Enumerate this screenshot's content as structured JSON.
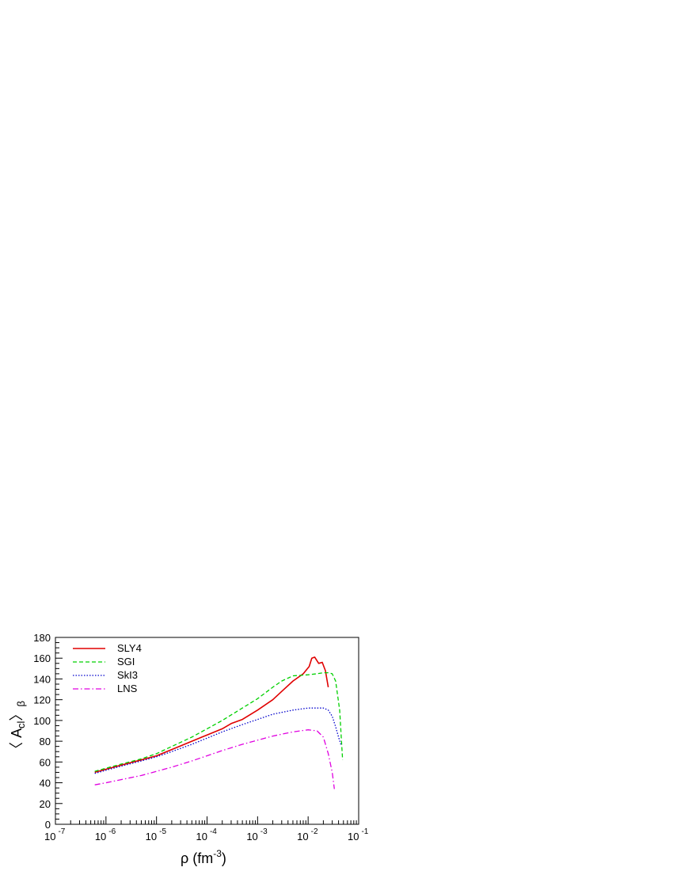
{
  "chart_data": {
    "type": "line",
    "title": "",
    "xlabel": {
      "base": "ρ (fm",
      "sup": "-3",
      "tail": ")"
    },
    "ylabel": {
      "open": "〈 A",
      "sub1": "cl",
      "close": "〉",
      "sub2": "β"
    },
    "x_scale": "log",
    "xlim": [
      1e-07,
      0.1
    ],
    "ylim": [
      0,
      180
    ],
    "y_ticks": [
      0,
      20,
      40,
      60,
      80,
      100,
      120,
      140,
      160,
      180
    ],
    "x_tick_labels": [
      {
        "exp": -7,
        "base": "10",
        "sup": "-7"
      },
      {
        "exp": -6,
        "base": "10",
        "sup": "-6"
      },
      {
        "exp": -5,
        "base": "10",
        "sup": "-5"
      },
      {
        "exp": -4,
        "base": "10",
        "sup": "-4"
      },
      {
        "exp": -3,
        "base": "10",
        "sup": "-3"
      },
      {
        "exp": -2,
        "base": "10",
        "sup": "-2"
      },
      {
        "exp": -1,
        "base": "10",
        "sup": "-1"
      }
    ],
    "grid": false,
    "legend_position": "top-left",
    "series": [
      {
        "name": "SLY4",
        "color": "#e00000",
        "dash": "solid",
        "x": [
          6e-07,
          1e-06,
          2e-06,
          5e-06,
          1e-05,
          2e-05,
          5e-05,
          0.0001,
          0.0002,
          0.0003,
          0.0005,
          0.001,
          0.002,
          0.003,
          0.005,
          0.008,
          0.0105,
          0.0118,
          0.0135,
          0.0162,
          0.019,
          0.022,
          0.025
        ],
        "y": [
          50,
          53,
          57,
          62,
          66,
          72,
          80,
          86,
          92,
          97,
          101,
          110,
          120,
          128,
          138,
          145,
          152,
          160,
          161,
          155,
          156,
          148,
          132
        ]
      },
      {
        "name": "SGI",
        "color": "#00d000",
        "dash": "dashed",
        "x": [
          6e-07,
          1e-06,
          2e-06,
          5e-06,
          1e-05,
          2e-05,
          5e-05,
          0.0001,
          0.0002,
          0.0005,
          0.001,
          0.002,
          0.003,
          0.005,
          0.01,
          0.015,
          0.02,
          0.025,
          0.03,
          0.035,
          0.042,
          0.048
        ],
        "y": [
          51,
          54,
          58,
          63,
          68,
          75,
          84,
          92,
          100,
          112,
          121,
          132,
          138,
          143,
          144,
          145,
          146,
          146,
          145,
          138,
          110,
          62
        ]
      },
      {
        "name": "SkI3",
        "color": "#0000cc",
        "dash": "dotted",
        "x": [
          6e-07,
          1e-06,
          2e-06,
          5e-06,
          1e-05,
          2e-05,
          5e-05,
          0.0001,
          0.0002,
          0.0005,
          0.001,
          0.002,
          0.005,
          0.01,
          0.015,
          0.02,
          0.025,
          0.03,
          0.035,
          0.04,
          0.045
        ],
        "y": [
          49,
          52,
          56,
          61,
          65,
          70,
          77,
          83,
          89,
          96,
          101,
          106,
          110,
          112,
          112,
          112,
          110,
          104,
          94,
          84,
          76
        ]
      },
      {
        "name": "LNS",
        "color": "#e000e0",
        "dash": "dashdot",
        "x": [
          6e-07,
          1e-06,
          2e-06,
          5e-06,
          1e-05,
          2e-05,
          5e-05,
          0.0001,
          0.0002,
          0.0005,
          0.001,
          0.002,
          0.005,
          0.01,
          0.015,
          0.02,
          0.025,
          0.03,
          0.033
        ],
        "y": [
          38,
          40,
          43,
          47,
          51,
          55,
          61,
          66,
          71,
          77,
          81,
          85,
          89,
          91,
          90,
          84,
          68,
          50,
          34
        ]
      }
    ]
  }
}
